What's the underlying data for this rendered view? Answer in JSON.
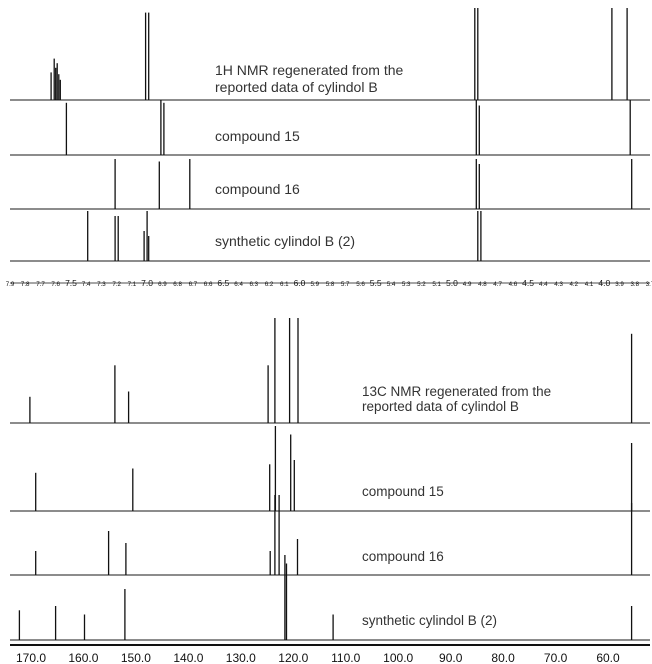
{
  "chart_data": [
    {
      "type": "line",
      "title": "",
      "xlabel": "",
      "ylabel": "",
      "x_reversed": true,
      "xlim": [
        3.7,
        7.9
      ],
      "tick_labels": [
        "7.9",
        "7.8",
        "7.7",
        "7.6",
        "7.5",
        "7.4",
        "7.3",
        "7.2",
        "7.1",
        "7.0",
        "6.9",
        "6.8",
        "6.7",
        "6.6",
        "6.5",
        "6.4",
        "6.3",
        "6.2",
        "6.1",
        "6.0",
        "5.9",
        "5.8",
        "5.7",
        "5.6",
        "5.5",
        "5.4",
        "5.3",
        "5.2",
        "5.1",
        "5.0",
        "4.9",
        "4.8",
        "4.7",
        "4.6",
        "4.5",
        "4.4",
        "4.3",
        "4.2",
        "4.1",
        "4.0",
        "3.9",
        "3.8",
        "3.7"
      ],
      "major_ticks": [
        "7.5",
        "7.0",
        "6.5",
        "6.0",
        "5.5",
        "5.0",
        "4.5",
        "4.0"
      ],
      "series": [
        {
          "name": "1H NMR regenerated from the reported data of cylindol B",
          "name_lines": [
            "1H NMR regenerated from the",
            "reported data of cylindol B"
          ],
          "peaks": [
            {
              "ppm": 7.63,
              "height": 0.3
            },
            {
              "ppm": 7.61,
              "height": 0.45
            },
            {
              "ppm": 7.6,
              "height": 0.35
            },
            {
              "ppm": 7.59,
              "height": 0.4
            },
            {
              "ppm": 7.58,
              "height": 0.28
            },
            {
              "ppm": 7.57,
              "height": 0.22
            },
            {
              "ppm": 7.01,
              "height": 0.95
            },
            {
              "ppm": 6.99,
              "height": 0.95
            },
            {
              "ppm": 4.85,
              "height": 1.0
            },
            {
              "ppm": 4.83,
              "height": 1.0
            },
            {
              "ppm": 3.95,
              "height": 1.0
            },
            {
              "ppm": 3.85,
              "height": 1.0
            }
          ]
        },
        {
          "name": "compound 15",
          "peaks": [
            {
              "ppm": 7.53,
              "height": 0.95
            },
            {
              "ppm": 6.91,
              "height": 1.0
            },
            {
              "ppm": 6.89,
              "height": 0.95
            },
            {
              "ppm": 4.84,
              "height": 1.0
            },
            {
              "ppm": 4.82,
              "height": 0.9
            },
            {
              "ppm": 3.83,
              "height": 1.0
            }
          ]
        },
        {
          "name": "compound 16",
          "peaks": [
            {
              "ppm": 7.21,
              "height": 1.0
            },
            {
              "ppm": 6.92,
              "height": 0.95
            },
            {
              "ppm": 6.72,
              "height": 1.0
            },
            {
              "ppm": 4.84,
              "height": 1.0
            },
            {
              "ppm": 4.82,
              "height": 0.9
            },
            {
              "ppm": 3.82,
              "height": 1.0
            }
          ]
        },
        {
          "name": "synthetic cylindol B (2)",
          "peaks": [
            {
              "ppm": 7.39,
              "height": 1.0
            },
            {
              "ppm": 7.21,
              "height": 0.9
            },
            {
              "ppm": 7.19,
              "height": 0.9
            },
            {
              "ppm": 7.02,
              "height": 0.6
            },
            {
              "ppm": 7.0,
              "height": 1.0
            },
            {
              "ppm": 6.99,
              "height": 0.5
            },
            {
              "ppm": 4.83,
              "height": 1.0
            },
            {
              "ppm": 4.81,
              "height": 1.0
            }
          ]
        }
      ]
    },
    {
      "type": "line",
      "title": "",
      "xlabel": "",
      "ylabel": "",
      "x_reversed": true,
      "xlim": [
        52,
        174
      ],
      "tick_labels": [
        "170.0",
        "160.0",
        "150.0",
        "140.0",
        "130.0",
        "120.0",
        "110.0",
        "100.0",
        "90.0",
        "80.0",
        "70.0",
        "60.0"
      ],
      "series": [
        {
          "name": "13C NMR regenerated from the reported data of cylindol B",
          "name_lines": [
            "13C NMR regenerated from the",
            "reported data of cylindol B"
          ],
          "peaks": [
            {
              "ppm": 170.2,
              "height": 0.25
            },
            {
              "ppm": 154.0,
              "height": 0.55
            },
            {
              "ppm": 151.4,
              "height": 0.3
            },
            {
              "ppm": 124.8,
              "height": 0.55
            },
            {
              "ppm": 123.5,
              "height": 1.0
            },
            {
              "ppm": 120.7,
              "height": 1.0
            },
            {
              "ppm": 119.1,
              "height": 1.0
            },
            {
              "ppm": 55.5,
              "height": 0.85
            }
          ]
        },
        {
          "name": "compound 15",
          "peaks": [
            {
              "ppm": 169.1,
              "height": 0.45
            },
            {
              "ppm": 150.6,
              "height": 0.5
            },
            {
              "ppm": 124.5,
              "height": 0.55
            },
            {
              "ppm": 123.4,
              "height": 1.0
            },
            {
              "ppm": 120.5,
              "height": 0.9
            },
            {
              "ppm": 119.8,
              "height": 0.6
            },
            {
              "ppm": 55.5,
              "height": 0.8
            }
          ]
        },
        {
          "name": "compound 16",
          "peaks": [
            {
              "ppm": 169.1,
              "height": 0.3
            },
            {
              "ppm": 155.2,
              "height": 0.55
            },
            {
              "ppm": 151.9,
              "height": 0.4
            },
            {
              "ppm": 124.4,
              "height": 0.3
            },
            {
              "ppm": 123.5,
              "height": 1.0
            },
            {
              "ppm": 122.7,
              "height": 1.0
            },
            {
              "ppm": 119.2,
              "height": 0.45
            },
            {
              "ppm": 55.5,
              "height": 0.9
            }
          ]
        },
        {
          "name": "synthetic cylindol B (2)",
          "peaks": [
            {
              "ppm": 172.2,
              "height": 0.35
            },
            {
              "ppm": 165.3,
              "height": 0.4
            },
            {
              "ppm": 159.8,
              "height": 0.3
            },
            {
              "ppm": 152.1,
              "height": 0.6
            },
            {
              "ppm": 121.6,
              "height": 1.0
            },
            {
              "ppm": 121.3,
              "height": 0.9
            },
            {
              "ppm": 112.4,
              "height": 0.3
            },
            {
              "ppm": 55.5,
              "height": 0.4
            }
          ]
        }
      ]
    }
  ]
}
